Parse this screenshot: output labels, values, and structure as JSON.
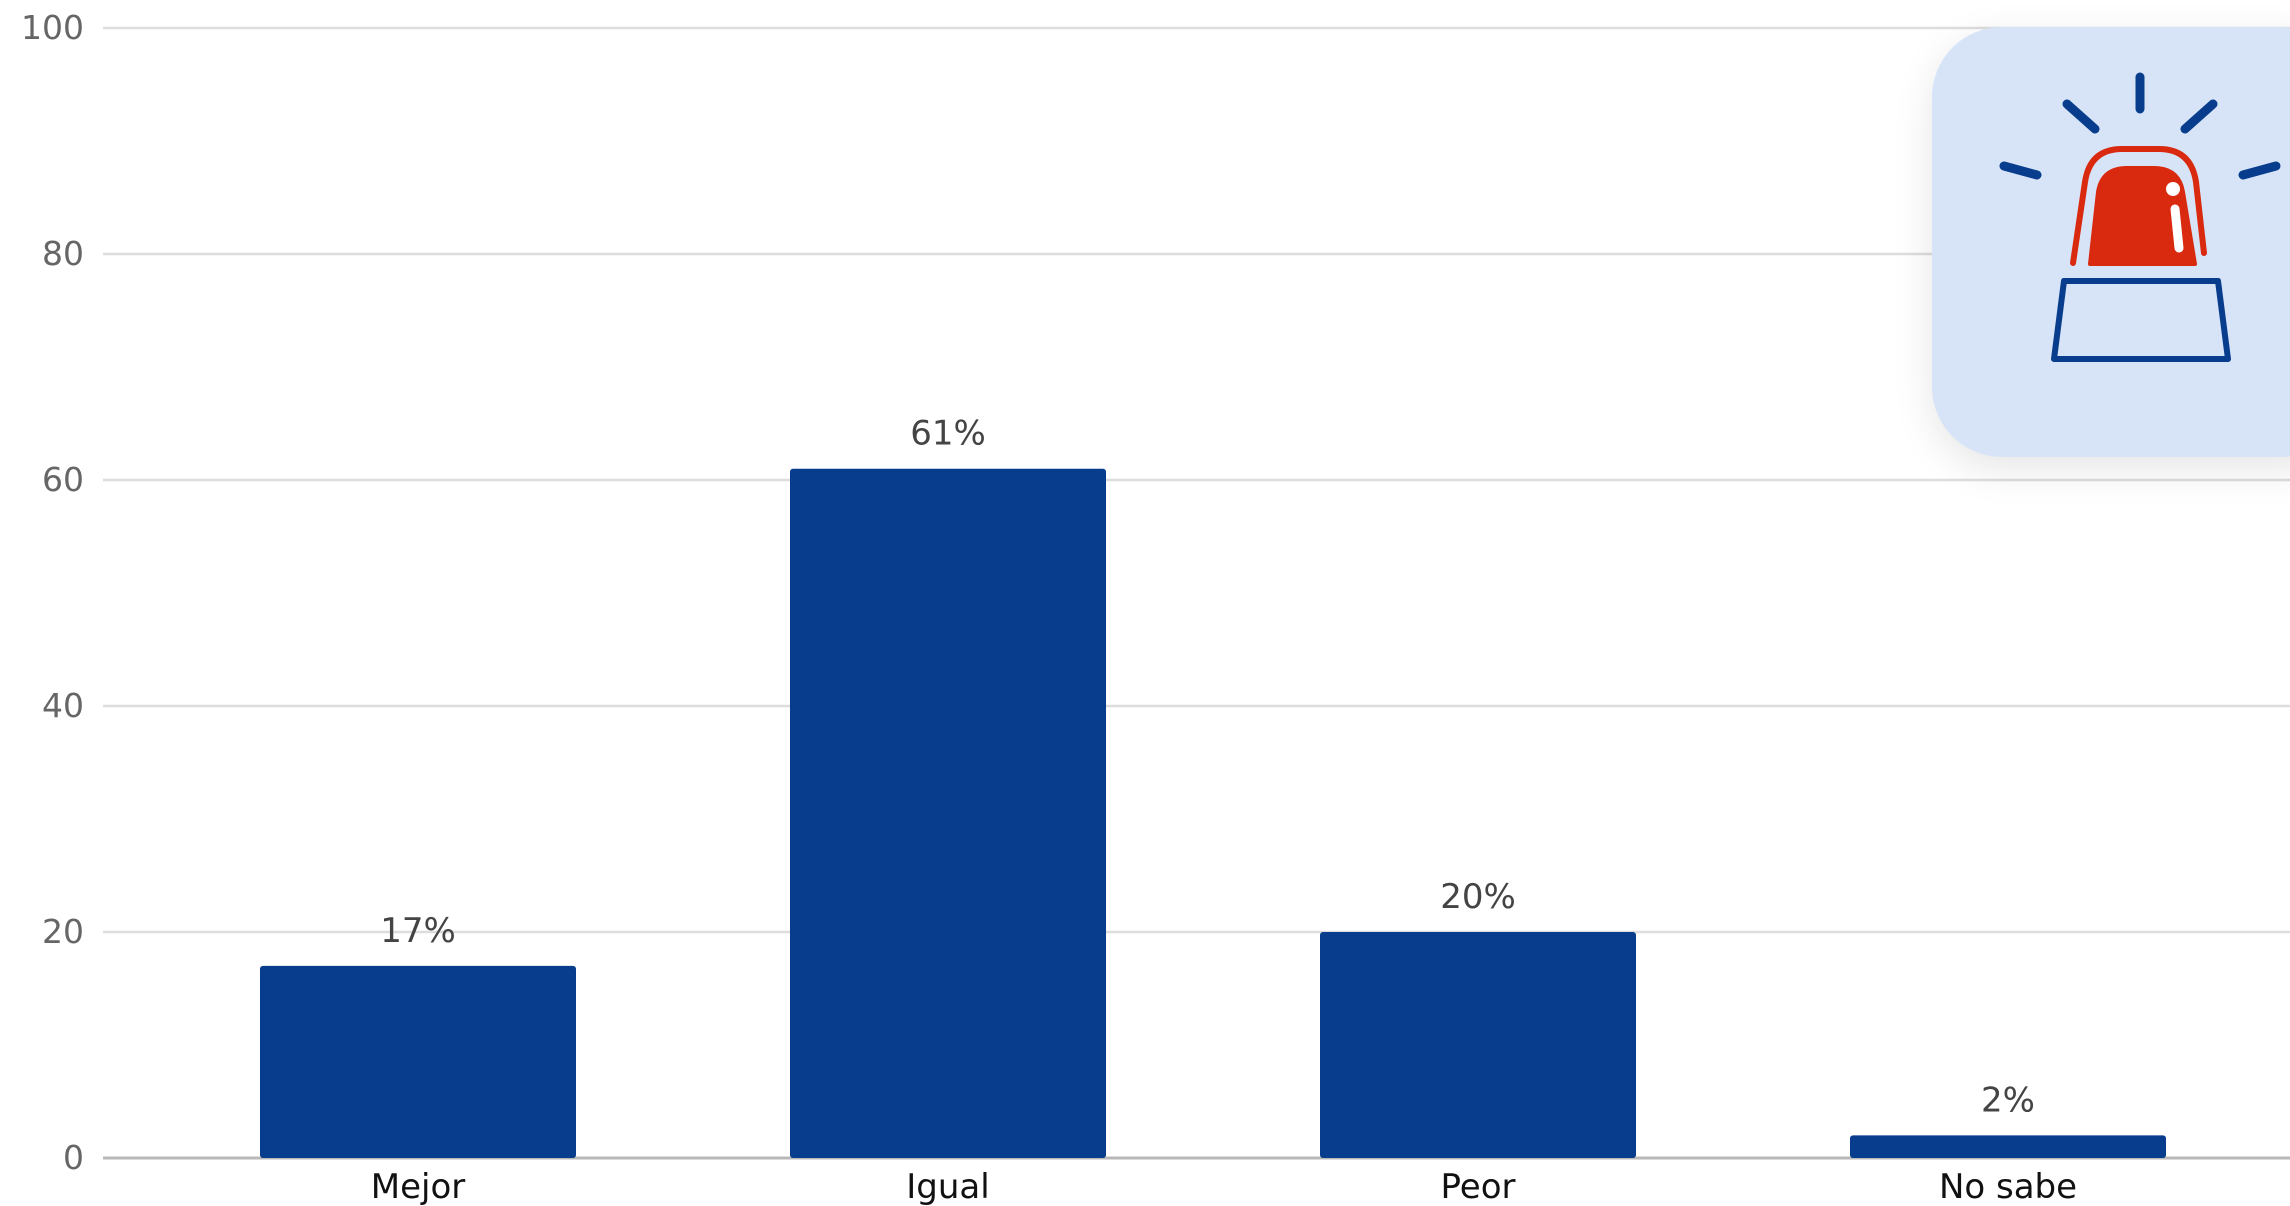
{
  "chart_data": {
    "type": "bar",
    "categories": [
      "Mejor",
      "Igual",
      "Peor",
      "No sabe"
    ],
    "values": [
      17,
      61,
      20,
      2
    ],
    "data_labels": [
      "17%",
      "61%",
      "20%",
      "2%"
    ],
    "title": "",
    "xlabel": "",
    "ylabel": "",
    "ylim": [
      0,
      100
    ],
    "yticks": [
      0,
      20,
      40,
      60,
      80,
      100
    ],
    "grid": true,
    "legend": "none",
    "bar_color": "#073d8c",
    "grid_color": "#dddddd"
  },
  "badge": {
    "icon": "alarm-siren-icon",
    "background": "#d7e4f8",
    "siren_color": "#d9290f",
    "outline_color": "#073d8c"
  }
}
